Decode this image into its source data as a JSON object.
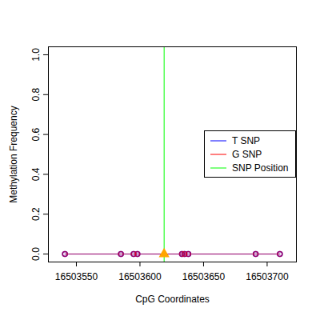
{
  "chart_data": {
    "type": "line",
    "x_label": "CpG Coordinates",
    "y_label": "Methylation Frequency",
    "x": [
      16503541,
      16503585,
      16503595,
      16503598,
      16503633,
      16503635,
      16503638,
      16503691,
      16503710
    ],
    "series": [
      {
        "name": "T SNP",
        "type": "line",
        "color": "#0000ff",
        "marker": "circle",
        "values": [
          0,
          0,
          0,
          0,
          0,
          0,
          0,
          0,
          0
        ]
      },
      {
        "name": "G SNP",
        "type": "line",
        "color": "#ff0000",
        "marker": "circle",
        "values": [
          0,
          0,
          0,
          0,
          0,
          0,
          0,
          0,
          0
        ]
      },
      {
        "name": "SNP Position",
        "type": "vline",
        "color": "#00ff00",
        "x": [
          16503619
        ]
      },
      {
        "type": "scatter",
        "marker": "triangle",
        "color": "#ffa500",
        "x": [
          16503619
        ],
        "values": [
          0
        ]
      }
    ],
    "xlim": [
      16503528,
      16503723
    ],
    "xticks": [
      16503550,
      16503600,
      16503650,
      16503700
    ],
    "ylim": [
      -0.04,
      1.04
    ],
    "yticks": [
      {
        "value": 0,
        "label": "0.0"
      },
      {
        "value": 0.2,
        "label": "0.2"
      },
      {
        "value": 0.4,
        "label": "0.4"
      },
      {
        "value": 0.6,
        "label": "0.6"
      },
      {
        "value": 0.8,
        "label": "0.8"
      },
      {
        "value": 1,
        "label": "1.0"
      }
    ],
    "legend": "right"
  }
}
